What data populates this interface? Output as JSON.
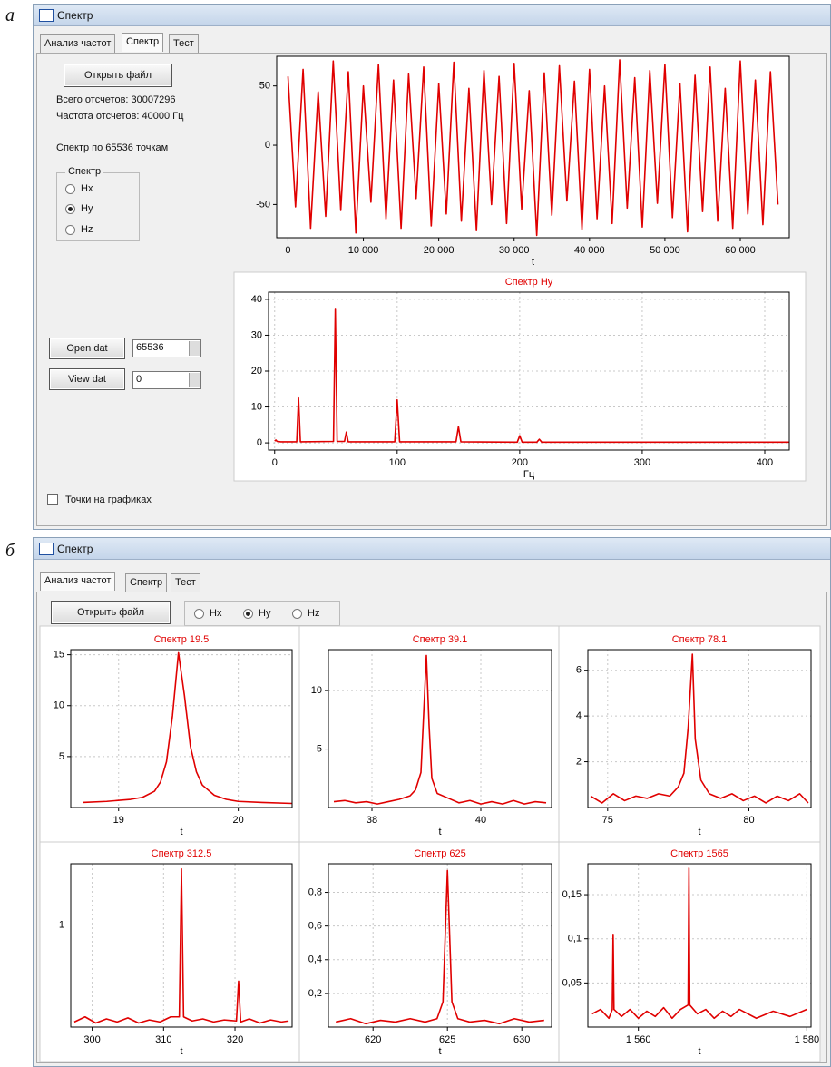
{
  "figure_labels": [
    "а",
    "б"
  ],
  "window_a": {
    "title": "Спектр",
    "tabs": [
      "Анализ частот",
      "Спектр",
      "Тест"
    ],
    "active_tab": 1,
    "open_file": "Открыть файл",
    "total_samples": "Всего отсчетов: 30007296",
    "sample_rate": "Частота отсчетов: 40000 Гц",
    "spectrum_points": "Спектр по 65536 точкам",
    "group_title": "Спектр",
    "radios": [
      "Hx",
      "Hy",
      "Hz"
    ],
    "selected": 1,
    "open_dat": "Open dat",
    "view_dat": "View dat",
    "spin_1": "65536",
    "spin_2": "0",
    "checkbox": "Точки на графиках"
  },
  "window_b": {
    "title": "Спектр",
    "tabs": [
      "Анализ частот",
      "Спектр",
      "Тест"
    ],
    "active_tab": 0,
    "open_file": "Открыть файл",
    "radios": [
      "Hx",
      "Hy",
      "Hz"
    ],
    "selected": 1
  },
  "chart_data": [
    {
      "type": "line",
      "x_label": "t",
      "color": "#e00000",
      "grid": false,
      "xlim": [
        -1500,
        66500
      ],
      "ylim": [
        -78,
        75
      ],
      "yticks": [
        -50,
        0,
        50
      ],
      "xticks": [
        0,
        {
          "value": 10000,
          "label": "10 000"
        },
        {
          "value": 20000,
          "label": "20 000"
        },
        {
          "value": 30000,
          "label": "30 000"
        },
        {
          "value": 40000,
          "label": "40 000"
        },
        {
          "value": 50000,
          "label": "50 000"
        },
        {
          "value": 60000,
          "label": "60 000"
        }
      ],
      "x": [
        0,
        1000,
        2000,
        3000,
        4000,
        5000,
        6000,
        7000,
        8000,
        9000,
        10000,
        11000,
        12000,
        13000,
        14000,
        15000,
        16000,
        17000,
        18000,
        19000,
        20000,
        21000,
        22000,
        23000,
        24000,
        25000,
        26000,
        27000,
        28000,
        29000,
        30000,
        31000,
        32000,
        33000,
        34000,
        35000,
        36000,
        37000,
        38000,
        39000,
        40000,
        41000,
        42000,
        43000,
        44000,
        45000,
        46000,
        47000,
        48000,
        49000,
        50000,
        51000,
        52000,
        53000,
        54000,
        55000,
        56000,
        57000,
        58000,
        59000,
        60000,
        61000,
        62000,
        63000,
        64000,
        65000
      ],
      "values": [
        58,
        -52,
        64,
        -70,
        45,
        -60,
        71,
        -55,
        62,
        -74,
        50,
        -48,
        68,
        -62,
        55,
        -70,
        60,
        -45,
        66,
        -68,
        52,
        -58,
        70,
        -64,
        48,
        -72,
        63,
        -50,
        58,
        -66,
        69,
        -54,
        46,
        -76,
        61,
        -59,
        67,
        -47,
        54,
        -71,
        64,
        -62,
        50,
        -66,
        72,
        -53,
        57,
        -69,
        63,
        -49,
        68,
        -61,
        52,
        -73,
        59,
        -56,
        66,
        -64,
        48,
        -70,
        71,
        -58,
        55,
        -67,
        62,
        -50
      ]
    },
    {
      "type": "line",
      "title": "Спектр Hy",
      "x_label": "Гц",
      "color": "#e00000",
      "grid": true,
      "xlim": [
        -5,
        420
      ],
      "ylim": [
        -2,
        42
      ],
      "yticks": [
        0,
        10,
        20,
        30,
        40
      ],
      "xticks": [
        0,
        100,
        200,
        300,
        400
      ],
      "x": [
        0,
        1,
        2,
        5,
        18,
        19.5,
        21,
        48,
        49.5,
        51,
        57,
        58.5,
        60,
        98,
        100,
        102,
        148,
        150,
        152,
        198,
        200,
        202,
        214,
        216,
        218,
        420
      ],
      "values": [
        0.5,
        0.8,
        0.4,
        0.3,
        0.3,
        12.5,
        0.3,
        0.4,
        37.2,
        0.4,
        0.4,
        3,
        0.3,
        0.3,
        12,
        0.3,
        0.3,
        4.5,
        0.3,
        0.2,
        2,
        0.2,
        0.2,
        1,
        0.2,
        0.2
      ]
    },
    {
      "type": "line",
      "title": "Спектр 19.5",
      "x_label": "t",
      "color": "#e00000",
      "grid": true,
      "xlim": [
        18.6,
        20.45
      ],
      "ylim": [
        0,
        15.5
      ],
      "yticks": [
        5,
        10,
        15
      ],
      "xticks": [
        19,
        20
      ],
      "x": [
        18.7,
        18.9,
        19.1,
        19.2,
        19.3,
        19.35,
        19.4,
        19.45,
        19.5,
        19.55,
        19.6,
        19.65,
        19.7,
        19.8,
        19.9,
        20.0,
        20.2,
        20.45
      ],
      "values": [
        0.5,
        0.6,
        0.8,
        1.0,
        1.6,
        2.5,
        4.5,
        9.0,
        15.2,
        11.0,
        6.0,
        3.5,
        2.2,
        1.2,
        0.8,
        0.6,
        0.5,
        0.4
      ]
    },
    {
      "type": "line",
      "title": "Спектр 39.1",
      "x_label": "t",
      "color": "#e00000",
      "grid": true,
      "xlim": [
        37.2,
        41.3
      ],
      "ylim": [
        0,
        13.5
      ],
      "yticks": [
        5,
        10
      ],
      "xticks": [
        38,
        40
      ],
      "x": [
        37.3,
        37.5,
        37.7,
        37.9,
        38.1,
        38.3,
        38.5,
        38.7,
        38.8,
        38.9,
        38.95,
        39.0,
        39.05,
        39.1,
        39.2,
        39.4,
        39.6,
        39.8,
        40.0,
        40.2,
        40.4,
        40.6,
        40.8,
        41.0,
        41.2
      ],
      "values": [
        0.5,
        0.6,
        0.4,
        0.5,
        0.3,
        0.5,
        0.7,
        1.0,
        1.5,
        3.0,
        8.0,
        13.0,
        7.0,
        2.5,
        1.2,
        0.8,
        0.4,
        0.6,
        0.3,
        0.5,
        0.3,
        0.6,
        0.3,
        0.5,
        0.4
      ]
    },
    {
      "type": "line",
      "title": "Спектр 78.1",
      "x_label": "t",
      "color": "#e00000",
      "grid": true,
      "xlim": [
        74.3,
        82.2
      ],
      "ylim": [
        0,
        6.9
      ],
      "yticks": [
        2,
        4,
        6
      ],
      "xticks": [
        75,
        80
      ],
      "x": [
        74.4,
        74.8,
        75.2,
        75.6,
        76.0,
        76.4,
        76.8,
        77.2,
        77.5,
        77.7,
        77.85,
        78.0,
        78.1,
        78.3,
        78.6,
        79.0,
        79.4,
        79.8,
        80.2,
        80.6,
        81.0,
        81.4,
        81.8,
        82.1
      ],
      "values": [
        0.5,
        0.2,
        0.6,
        0.3,
        0.5,
        0.4,
        0.6,
        0.5,
        0.9,
        1.5,
        3.5,
        6.7,
        3.0,
        1.2,
        0.6,
        0.4,
        0.6,
        0.3,
        0.5,
        0.2,
        0.5,
        0.3,
        0.6,
        0.2
      ]
    },
    {
      "type": "line",
      "title": "Спектр 312.5",
      "x_label": "t",
      "color": "#e00000",
      "grid": true,
      "xlim": [
        297,
        328
      ],
      "ylim": [
        0,
        1.6
      ],
      "yticks": [
        1
      ],
      "xticks": [
        300,
        310,
        320
      ],
      "x": [
        297.5,
        299,
        300.5,
        302,
        303.5,
        305,
        306.5,
        308,
        309.5,
        311,
        312.2,
        312.5,
        312.8,
        314,
        315.5,
        317,
        318.5,
        320.2,
        320.5,
        320.8,
        322,
        323.5,
        325,
        326.5,
        327.5
      ],
      "values": [
        0.05,
        0.1,
        0.04,
        0.08,
        0.05,
        0.09,
        0.04,
        0.07,
        0.05,
        0.1,
        0.1,
        1.55,
        0.1,
        0.06,
        0.08,
        0.05,
        0.07,
        0.06,
        0.45,
        0.05,
        0.08,
        0.04,
        0.07,
        0.05,
        0.06
      ]
    },
    {
      "type": "line",
      "title": "Спектр 625",
      "x_label": "t",
      "color": "#e00000",
      "grid": true,
      "xlim": [
        617,
        632
      ],
      "ylim": [
        0,
        0.97
      ],
      "yticks": [
        {
          "value": 0.2,
          "label": "0,2"
        },
        {
          "value": 0.4,
          "label": "0,4"
        },
        {
          "value": 0.6,
          "label": "0,6"
        },
        {
          "value": 0.8,
          "label": "0,8"
        }
      ],
      "xticks": [
        620,
        625,
        630
      ],
      "x": [
        617.5,
        618.5,
        619.5,
        620.5,
        621.5,
        622.5,
        623.5,
        624.3,
        624.7,
        625,
        625.3,
        625.7,
        626.5,
        627.5,
        628.5,
        629.5,
        630.5,
        631.5
      ],
      "values": [
        0.03,
        0.05,
        0.02,
        0.04,
        0.03,
        0.05,
        0.03,
        0.05,
        0.15,
        0.93,
        0.15,
        0.05,
        0.03,
        0.04,
        0.02,
        0.05,
        0.03,
        0.04
      ]
    },
    {
      "type": "line",
      "title": "Спектр 1565",
      "x_label": "t",
      "color": "#e00000",
      "grid": true,
      "xlim": [
        1554,
        1580.5
      ],
      "ylim": [
        0,
        0.185
      ],
      "yticks": [
        {
          "value": 0.05,
          "label": "0,05"
        },
        {
          "value": 0.1,
          "label": "0,1"
        },
        {
          "value": 0.15,
          "label": "0,15"
        }
      ],
      "xticks": [
        {
          "value": 1560,
          "label": "1 560"
        },
        {
          "value": 1580,
          "label": "1 580"
        }
      ],
      "x": [
        1554.5,
        1555.5,
        1556.5,
        1556.9,
        1557,
        1557.1,
        1558,
        1559,
        1560,
        1561,
        1562,
        1563,
        1564,
        1565,
        1565.9,
        1566,
        1566.1,
        1567,
        1568,
        1569,
        1570,
        1571,
        1572,
        1574,
        1576,
        1578,
        1580
      ],
      "values": [
        0.015,
        0.02,
        0.01,
        0.02,
        0.105,
        0.02,
        0.012,
        0.02,
        0.01,
        0.018,
        0.012,
        0.022,
        0.01,
        0.02,
        0.025,
        0.18,
        0.025,
        0.015,
        0.02,
        0.01,
        0.018,
        0.012,
        0.02,
        0.01,
        0.018,
        0.012,
        0.02
      ]
    }
  ]
}
